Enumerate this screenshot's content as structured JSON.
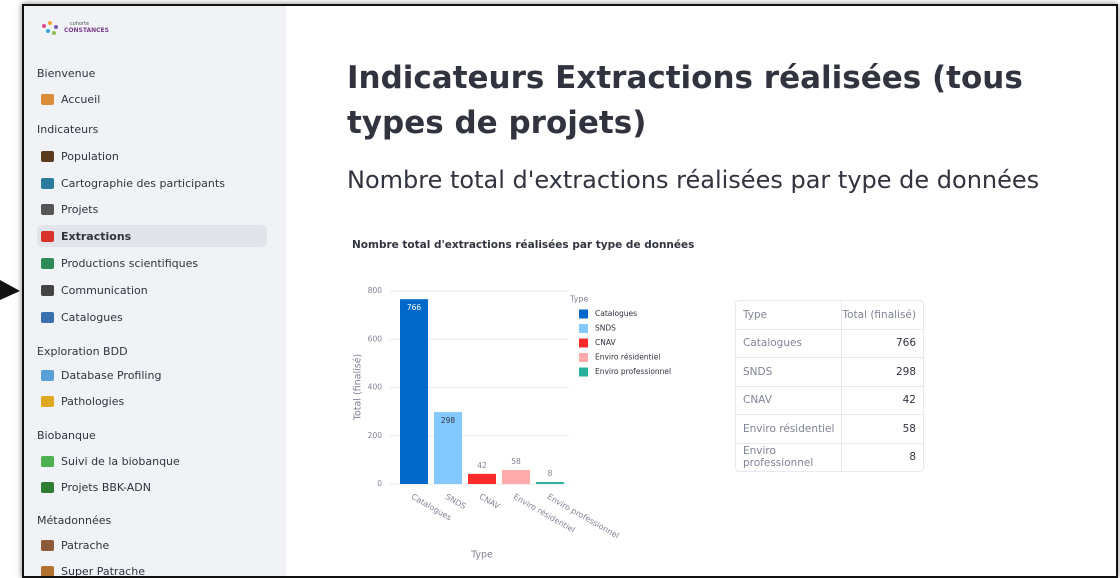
{
  "logo": {
    "small": "cohorte",
    "big": "CONSTANCES"
  },
  "sidebar": {
    "sections": [
      {
        "title": "Bienvenue",
        "items": [
          "Accueil"
        ]
      },
      {
        "title": "Indicateurs",
        "items": [
          "Population",
          "Cartographie des participants",
          "Projets",
          "Extractions",
          "Productions scientifiques",
          "Communication",
          "Catalogues"
        ]
      },
      {
        "title": "Exploration BDD",
        "items": [
          "Database Profiling",
          "Pathologies"
        ]
      },
      {
        "title": "Biobanque",
        "items": [
          "Suivi de la biobanque",
          "Projets BBK-ADN"
        ]
      },
      {
        "title": "Métadonnées",
        "items": [
          "Patrache",
          "Super Patrache"
        ]
      }
    ]
  },
  "page": {
    "title": "Indicateurs Extractions réalisées (tous types de projets)",
    "subtitle": "Nombre total d'extractions réalisées par type de données"
  },
  "chart_data": {
    "type": "bar",
    "title": "Nombre total d'extractions réalisées par type de données",
    "x_label": "Type",
    "y_label": "Total (finalisé)",
    "legend_title": "Type",
    "categories": [
      "Catalogues",
      "SNDS",
      "CNAV",
      "Enviro résidentiel",
      "Enviro professionnel"
    ],
    "values": [
      766,
      298,
      42,
      58,
      8
    ],
    "colors": [
      "#0068c9",
      "#83c9ff",
      "#ff2b2b",
      "#ffabab",
      "#29b09d"
    ],
    "ylim": [
      0,
      800
    ],
    "yticks": [
      0,
      200,
      400,
      600,
      800
    ],
    "grid": true,
    "legend": "right"
  },
  "table": {
    "columns": [
      "Type",
      "Total (finalisé)"
    ]
  }
}
